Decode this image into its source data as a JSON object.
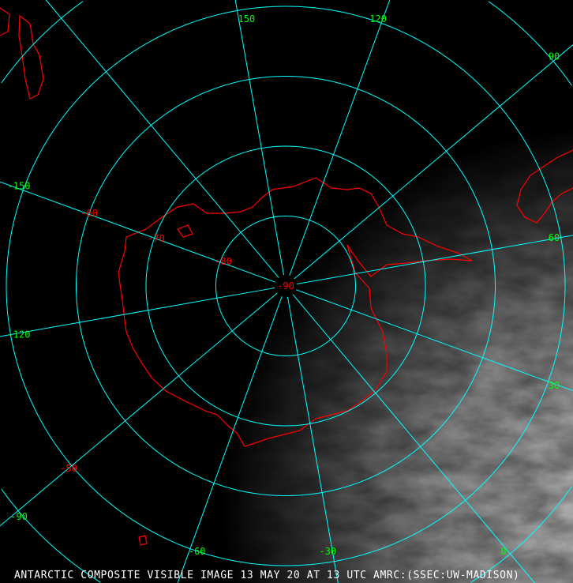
{
  "caption": "ANTARCTIC COMPOSITE VISIBLE IMAGE 13 MAY 20 AT 13 UTC AMRC:(SSEC:UW-MADISON)",
  "colors": {
    "grid": "#00ffff",
    "coastline": "#ff0000",
    "longitude_labels": "#00ff00",
    "latitude_labels": "#ff0000",
    "caption": "#ffffff"
  },
  "map": {
    "projection": "polar stereographic, south pole",
    "meridians": [
      0,
      30,
      60,
      90,
      120,
      150,
      180,
      -150,
      -120,
      -90,
      -60,
      -30
    ],
    "parallels": [
      -80,
      -70,
      -60,
      -50,
      -40
    ],
    "longitude_labels": [
      {
        "lon": 150,
        "text": "150"
      },
      {
        "lon": 120,
        "text": "120"
      },
      {
        "lon": 90,
        "text": "90"
      },
      {
        "lon": 60,
        "text": "60"
      },
      {
        "lon": 30,
        "text": "30"
      },
      {
        "lon": 0,
        "text": "0"
      },
      {
        "lon": -30,
        "text": "-30"
      },
      {
        "lon": -60,
        "text": "-60"
      },
      {
        "lon": -90,
        "text": "-90"
      },
      {
        "lon": -120,
        "text": "-120"
      },
      {
        "lon": -150,
        "text": "-150"
      }
    ],
    "latitude_labels": [
      {
        "lat": -90,
        "text": "-90"
      },
      {
        "lat": -80,
        "text": "-80"
      },
      {
        "lat": -70,
        "text": "-70"
      },
      {
        "lat": -60,
        "text": "-60"
      },
      {
        "lat": -50,
        "text": "-50"
      }
    ]
  }
}
